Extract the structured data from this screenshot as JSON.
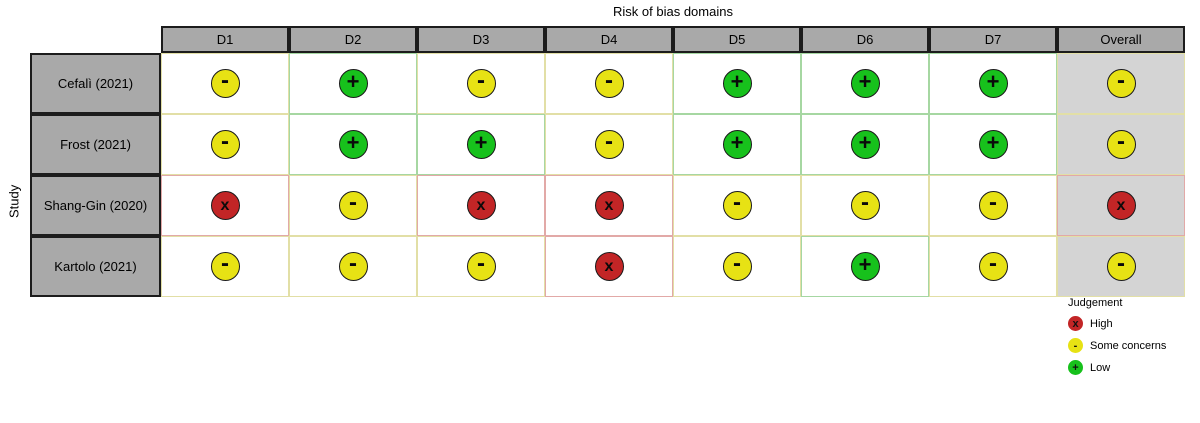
{
  "title": "Risk of bias domains",
  "y_axis_label": "Study",
  "columns": [
    "D1",
    "D2",
    "D3",
    "D4",
    "D5",
    "D6",
    "D7",
    "Overall"
  ],
  "rows": [
    {
      "study": "Cefalì (2021)",
      "judgements": [
        "some",
        "low",
        "some",
        "some",
        "low",
        "low",
        "low",
        "some"
      ]
    },
    {
      "study": "Frost (2021)",
      "judgements": [
        "some",
        "low",
        "low",
        "some",
        "low",
        "low",
        "low",
        "some"
      ]
    },
    {
      "study": "Shang-Gin (2020)",
      "judgements": [
        "high",
        "some",
        "high",
        "high",
        "some",
        "some",
        "some",
        "high"
      ]
    },
    {
      "study": "Kartolo (2021)",
      "judgements": [
        "some",
        "some",
        "some",
        "high",
        "some",
        "low",
        "some",
        "some"
      ]
    }
  ],
  "symbols": {
    "high": "x",
    "some": "-",
    "low": "+"
  },
  "legend": {
    "title": "Judgement",
    "items": [
      {
        "key": "high",
        "label": "High"
      },
      {
        "key": "some",
        "label": "Some concerns"
      },
      {
        "key": "low",
        "label": "Low"
      }
    ]
  },
  "colors": {
    "high": "#c22526",
    "some_concerns": "#e7e214",
    "low": "#17c11c",
    "header_fill": "#a9a9a9",
    "overall_column_fill": "#d4d4d4",
    "border_tint_high": "#e2a9a7",
    "border_tint_some": "#e2dfa6",
    "border_tint_low": "#a6d7a2"
  },
  "chart_data": {
    "type": "table",
    "title": "Risk of bias domains",
    "xlabel": "",
    "ylabel": "Study",
    "columns": [
      "D1",
      "D2",
      "D3",
      "D4",
      "D5",
      "D6",
      "D7",
      "Overall"
    ],
    "row_labels": [
      "Cefalì (2021)",
      "Frost (2021)",
      "Shang-Gin (2020)",
      "Kartolo (2021)"
    ],
    "values": [
      [
        "Some concerns",
        "Low",
        "Some concerns",
        "Some concerns",
        "Low",
        "Low",
        "Low",
        "Some concerns"
      ],
      [
        "Some concerns",
        "Low",
        "Low",
        "Some concerns",
        "Low",
        "Low",
        "Low",
        "Some concerns"
      ],
      [
        "High",
        "Some concerns",
        "High",
        "High",
        "Some concerns",
        "Some concerns",
        "Some concerns",
        "High"
      ],
      [
        "Some concerns",
        "Some concerns",
        "Some concerns",
        "High",
        "Some concerns",
        "Low",
        "Some concerns",
        "Some concerns"
      ]
    ],
    "legend_position": "bottom-right",
    "legend_title": "Judgement",
    "legend_entries": [
      "High",
      "Some concerns",
      "Low"
    ]
  }
}
